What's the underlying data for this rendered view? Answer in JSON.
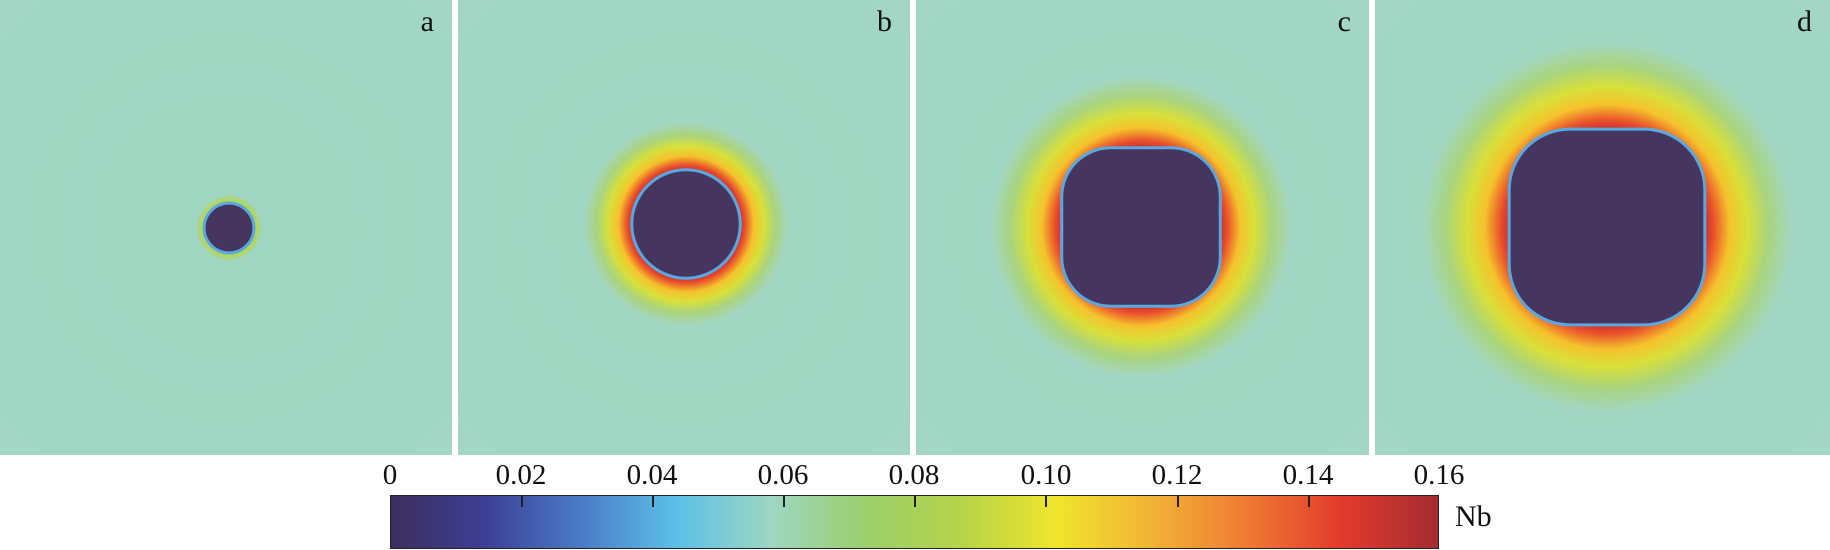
{
  "panels": [
    {
      "label": "a",
      "particle_scale": 0.11
    },
    {
      "label": "b",
      "particle_scale": 0.24
    },
    {
      "label": "c",
      "particle_scale": 0.35
    },
    {
      "label": "d",
      "particle_scale": 0.43
    }
  ],
  "colorbar": {
    "ticks": [
      "0",
      "0.02",
      "0.04",
      "0.06",
      "0.08",
      "0.10",
      "0.12",
      "0.14",
      "0.16"
    ],
    "unit": "Nb",
    "colors": [
      "#3c2f5e",
      "#3d3f96",
      "#4a7cc6",
      "#5cc0e8",
      "#9ed6c1",
      "#9ccf6a",
      "#b6d44a",
      "#f0e52c",
      "#f2b236",
      "#ef7a33",
      "#e23a2c",
      "#a42c32"
    ]
  }
}
